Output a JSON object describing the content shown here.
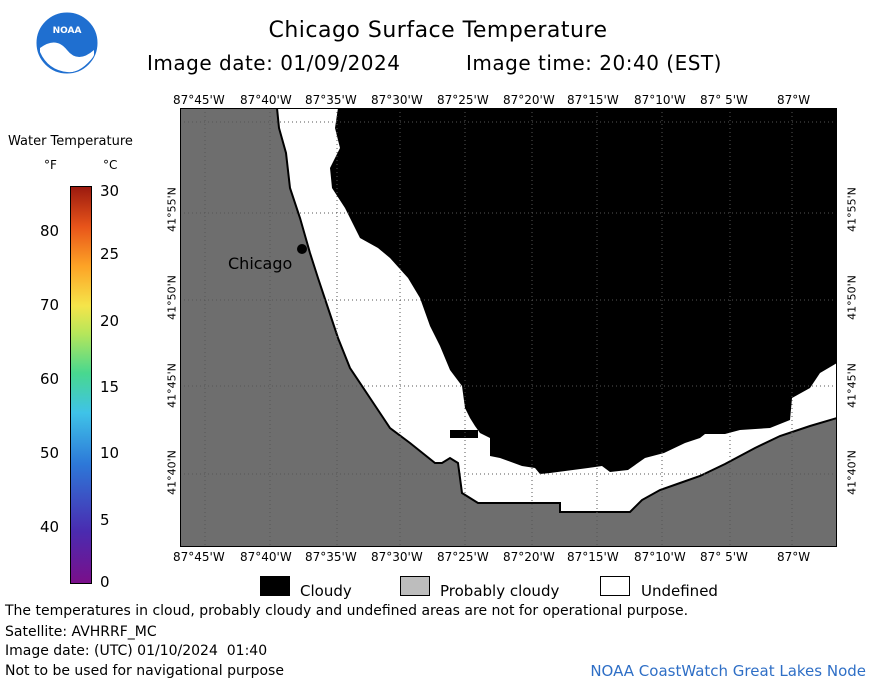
{
  "header": {
    "title": "Chicago Surface Temperature",
    "image_date": "Image date: 01/09/2024",
    "image_time": "Image time: 20:40 (EST)"
  },
  "logo": {
    "text": "NOAA",
    "color": "#1f6fd0"
  },
  "legend": {
    "title": "Water Temperature",
    "unit_f": "°F",
    "unit_c": "°C",
    "f_ticks": [
      "80",
      "70",
      "60",
      "50",
      "40"
    ],
    "c_ticks": [
      "30",
      "25",
      "20",
      "15",
      "10",
      "5",
      "0"
    ]
  },
  "map": {
    "lon_labels_top": [
      "87°45'W",
      "87°40'W",
      "87°35'W",
      "87°30'W",
      "87°25'W",
      "87°20'W",
      "87°15'W",
      "87°10'W",
      "87° 5'W",
      "87°W"
    ],
    "lon_labels_bottom": [
      "87°45'W",
      "87°40'W",
      "87°35'W",
      "87°30'W",
      "87°25'W",
      "87°20'W",
      "87°15'W",
      "87°10'W",
      "87° 5'W",
      "87°W"
    ],
    "lat_labels_left": [
      "41°55'N",
      "41°50'N",
      "41°45'N",
      "41°40'N"
    ],
    "lat_labels_right": [
      "41°55'N",
      "41°50'N",
      "41°45'N",
      "41°40'N"
    ],
    "city_label": "Chicago",
    "colors": {
      "land": "#6e6e6e",
      "cloudy": "#000000",
      "undefined": "#ffffff",
      "probably_cloudy": "#bdbdbd"
    }
  },
  "key": {
    "cloudy": "Cloudy",
    "probably_cloudy": "Probably cloudy",
    "undefined": "Undefined"
  },
  "notes": {
    "disclaimer": "The temperatures in cloud, probably cloudy and undefined areas are not for operational purpose.",
    "satellite": "Satellite: AVHRRF_MC",
    "utc_date": "Image date: (UTC) 01/10/2024  01:40",
    "navigation": "Not to be used for navigational purpose",
    "credit": "NOAA CoastWatch Great Lakes Node"
  }
}
